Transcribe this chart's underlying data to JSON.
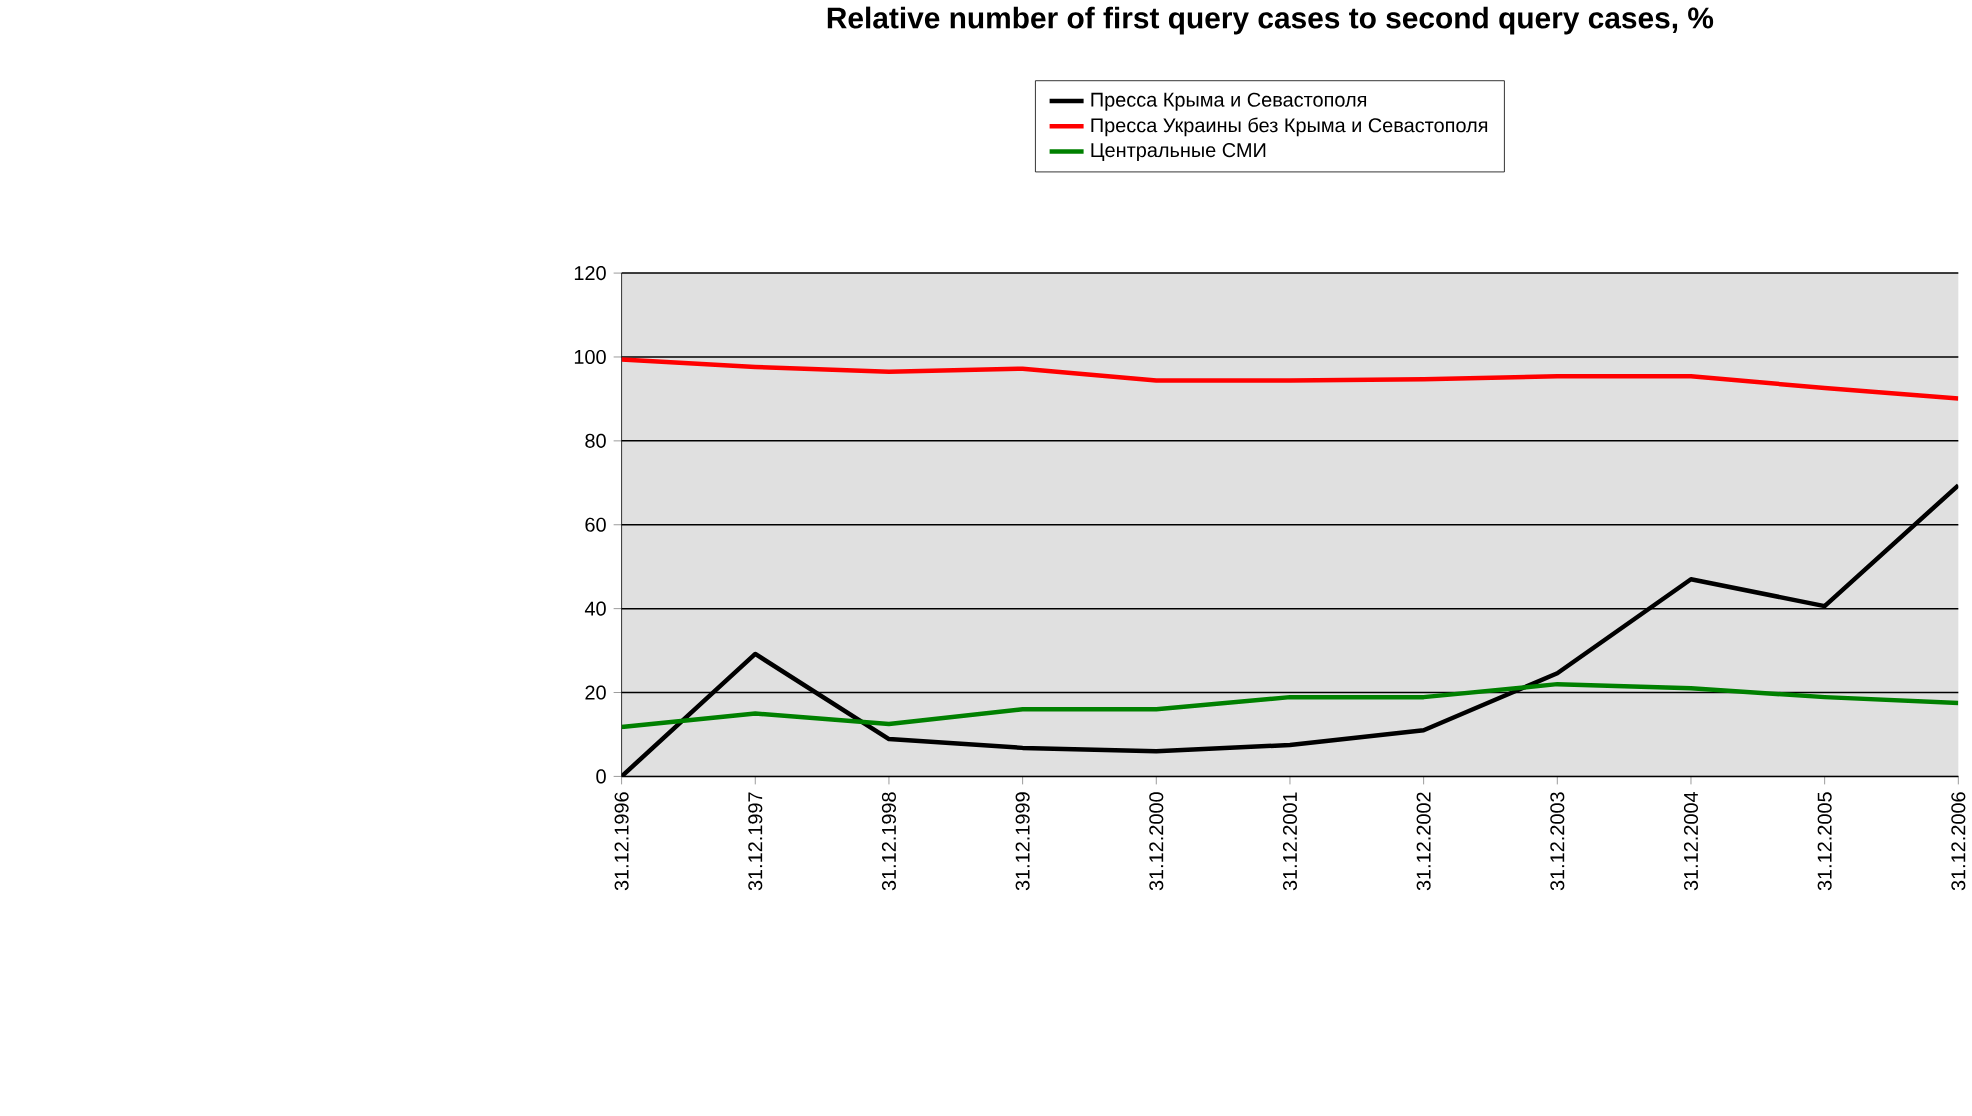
{
  "chart_data": {
    "type": "line",
    "title": "Relative number of first query cases to second query cases, %",
    "categories": [
      "31.12.1996",
      "31.12.1997",
      "31.12.1998",
      "31.12.1999",
      "31.12.2000",
      "31.12.2001",
      "31.12.2002",
      "31.12.2003",
      "31.12.2004",
      "31.12.2005",
      "31.12.2006"
    ],
    "series": [
      {
        "name": "Пресса Крыма и Севастополя",
        "color": "#000000",
        "values": [
          0,
          29.2,
          8.9,
          6.8,
          6,
          7.5,
          11,
          24.6,
          47,
          40.6,
          69.4
        ]
      },
      {
        "name": "Пресса Украины без Крыма и Севастополя",
        "color": "#ff0000",
        "values": [
          99.4,
          97.6,
          96.5,
          97.2,
          94.4,
          94.4,
          94.7,
          95.4,
          95.4,
          92.6,
          90.1
        ]
      },
      {
        "name": "Центральные СМИ",
        "color": "#008000",
        "values": [
          11.8,
          15,
          12.5,
          16,
          16,
          18.9,
          18.9,
          22,
          21,
          18.9,
          17.5
        ]
      }
    ],
    "ylim": [
      0,
      120
    ],
    "yticks": [
      0,
      20,
      40,
      60,
      80,
      100,
      120
    ],
    "grid": "y",
    "legend": "top",
    "marker": "none",
    "line_style": "solid"
  }
}
